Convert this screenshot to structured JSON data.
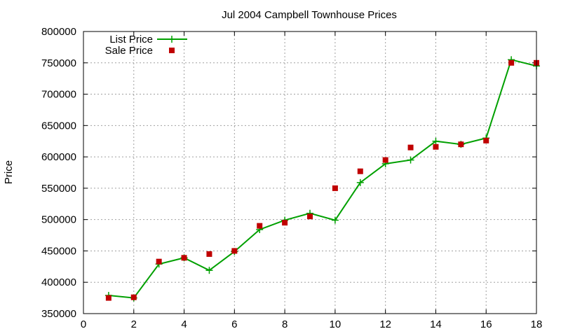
{
  "chart_data": {
    "type": "line",
    "title": "Jul 2004 Campbell Townhouse Prices",
    "xlabel": "",
    "ylabel": "Price",
    "xlim": [
      0,
      18
    ],
    "ylim": [
      350000,
      800000
    ],
    "xticks": [
      0,
      2,
      4,
      6,
      8,
      10,
      12,
      14,
      16,
      18
    ],
    "yticks": [
      350000,
      400000,
      450000,
      500000,
      550000,
      600000,
      650000,
      700000,
      750000,
      800000
    ],
    "grid": true,
    "legend_position": "top-left",
    "series": [
      {
        "name": "List Price",
        "style": "line+cross",
        "color": "#00a000",
        "x": [
          1,
          2,
          3,
          4,
          5,
          6,
          7,
          8,
          9,
          10,
          11,
          12,
          13,
          14,
          15,
          16,
          17,
          18
        ],
        "y": [
          379000,
          375000,
          429000,
          439000,
          419000,
          449000,
          484000,
          499000,
          510000,
          499000,
          559000,
          589000,
          595000,
          625000,
          620000,
          630000,
          755000,
          745000
        ]
      },
      {
        "name": "Sale Price",
        "style": "square",
        "color": "#c00000",
        "x": [
          1,
          2,
          3,
          4,
          5,
          6,
          7,
          8,
          9,
          10,
          11,
          12,
          13,
          14,
          15,
          16,
          17,
          18
        ],
        "y": [
          375000,
          376000,
          433000,
          439000,
          445000,
          450000,
          490000,
          495000,
          505000,
          550000,
          577000,
          595000,
          615000,
          616000,
          620000,
          626000,
          750000,
          750000
        ]
      }
    ]
  }
}
